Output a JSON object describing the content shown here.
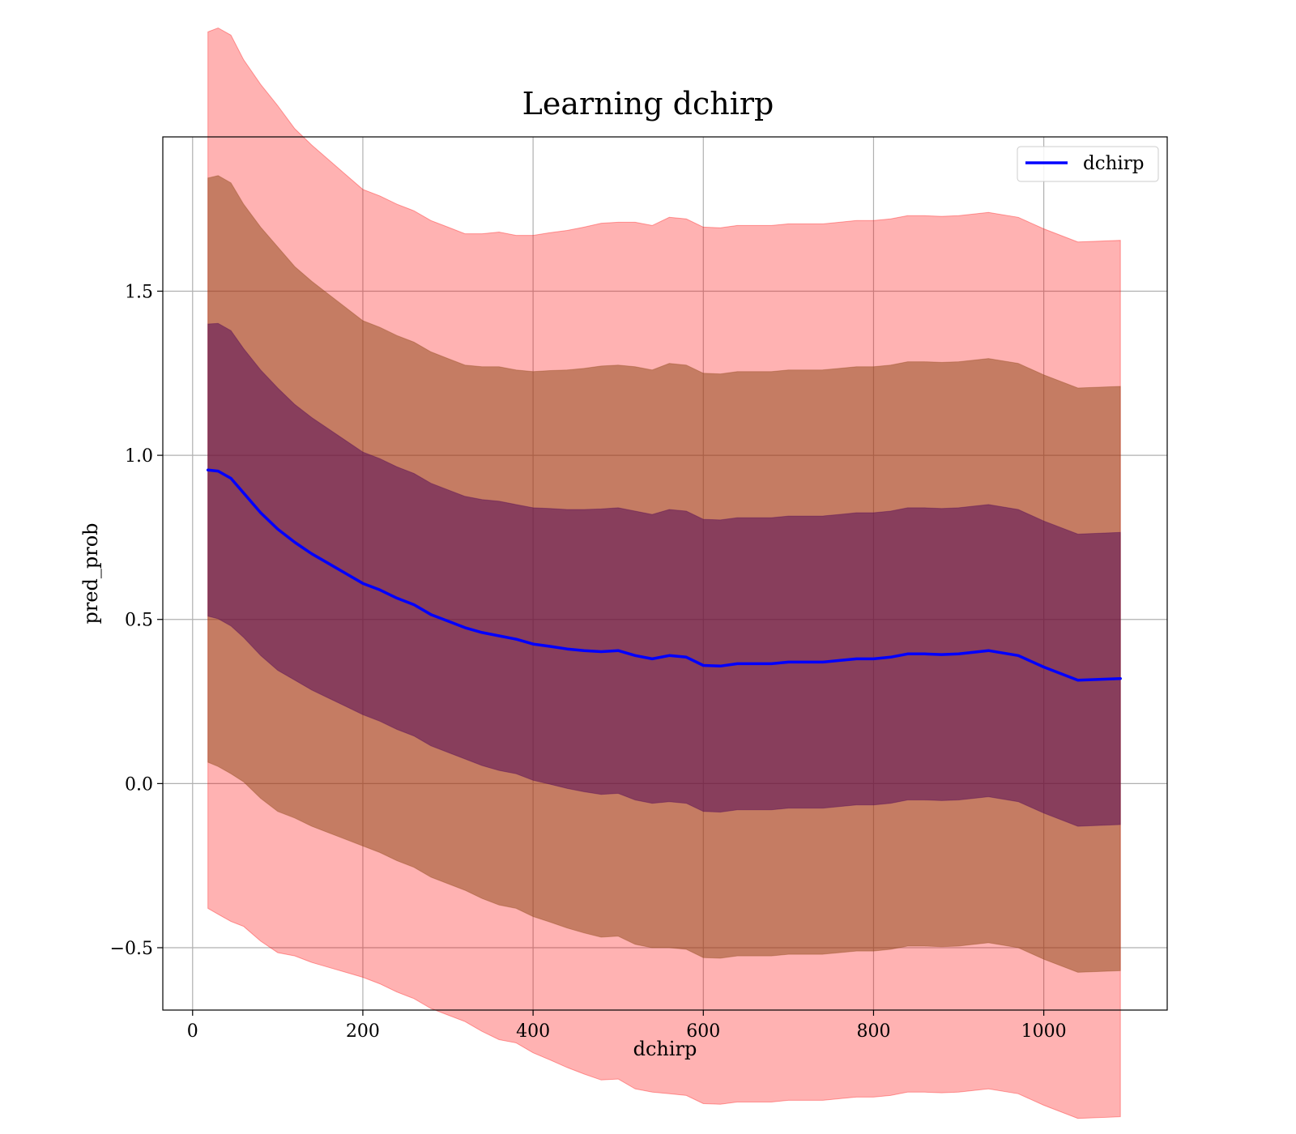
{
  "chart_data": {
    "type": "line",
    "title": "Learning dchirp",
    "xlabel": "dchirp",
    "ylabel": "pred_prob",
    "xlim": [
      -35,
      1145
    ],
    "ylim": [
      -0.69,
      1.97
    ],
    "xticks": [
      0,
      200,
      400,
      600,
      800,
      1000
    ],
    "yticks": [
      -0.5,
      0.0,
      0.5,
      1.0,
      1.5
    ],
    "xtick_labels": [
      "0",
      "200",
      "400",
      "600",
      "800",
      "1000"
    ],
    "ytick_labels": [
      "−0.5",
      "0.0",
      "0.5",
      "1.0",
      "1.5"
    ],
    "grid": true,
    "legend": {
      "position": "top-right",
      "entries": [
        "dchirp"
      ]
    },
    "colors": {
      "line": "#0000ff",
      "band_outer": "#ff0000",
      "band_middle": "#8b4513",
      "band_inner": "#4b0055"
    },
    "x": [
      18,
      30,
      45,
      60,
      80,
      100,
      120,
      140,
      160,
      180,
      200,
      220,
      240,
      260,
      280,
      300,
      320,
      340,
      360,
      380,
      400,
      420,
      440,
      460,
      480,
      500,
      520,
      540,
      560,
      580,
      600,
      620,
      640,
      660,
      680,
      700,
      720,
      740,
      760,
      780,
      800,
      820,
      840,
      860,
      880,
      900,
      935,
      970,
      1000,
      1040,
      1090
    ],
    "series": [
      {
        "name": "dchirp",
        "values": [
          0.955,
          0.952,
          0.93,
          0.885,
          0.825,
          0.775,
          0.735,
          0.7,
          0.67,
          0.64,
          0.61,
          0.59,
          0.565,
          0.545,
          0.515,
          0.495,
          0.475,
          0.46,
          0.45,
          0.44,
          0.425,
          0.418,
          0.41,
          0.405,
          0.402,
          0.405,
          0.39,
          0.38,
          0.39,
          0.385,
          0.36,
          0.358,
          0.365,
          0.365,
          0.365,
          0.37,
          0.37,
          0.37,
          0.375,
          0.38,
          0.38,
          0.385,
          0.395,
          0.395,
          0.393,
          0.395,
          0.405,
          0.39,
          0.355,
          0.315,
          0.32
        ],
        "std": [
          0.445,
          0.45,
          0.45,
          0.44,
          0.435,
          0.43,
          0.42,
          0.415,
          0.41,
          0.405,
          0.4,
          0.4,
          0.4,
          0.4,
          0.4,
          0.4,
          0.4,
          0.405,
          0.41,
          0.41,
          0.415,
          0.42,
          0.425,
          0.43,
          0.435,
          0.435,
          0.44,
          0.44,
          0.445,
          0.445,
          0.445,
          0.445,
          0.445,
          0.445,
          0.445,
          0.445,
          0.445,
          0.445,
          0.445,
          0.445,
          0.445,
          0.445,
          0.445,
          0.445,
          0.445,
          0.445,
          0.445,
          0.445,
          0.445,
          0.445,
          0.445
        ]
      }
    ]
  }
}
